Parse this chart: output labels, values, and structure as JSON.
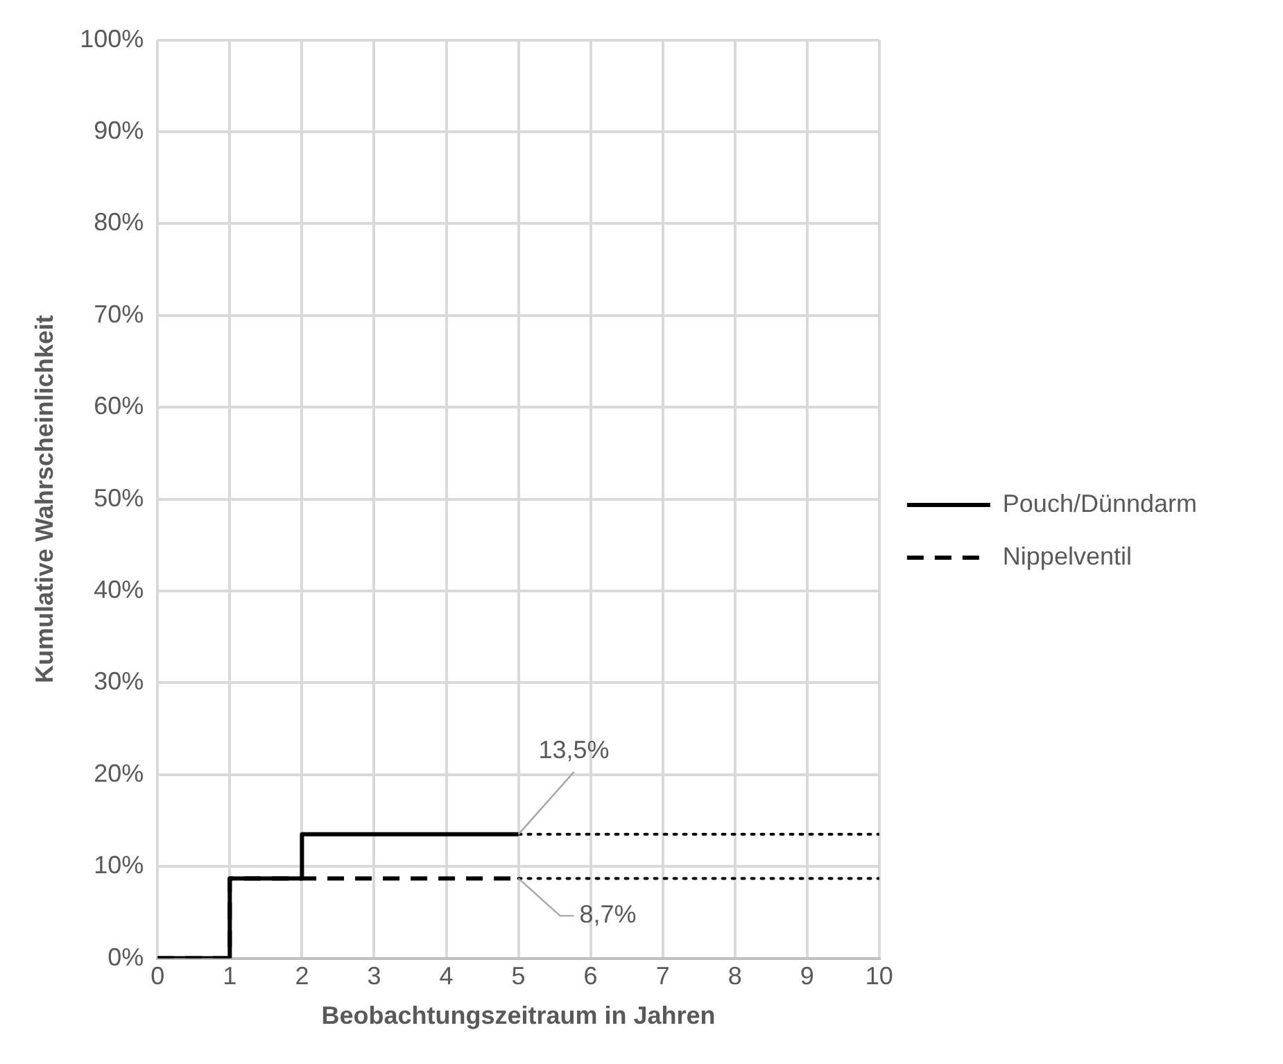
{
  "chart_data": {
    "type": "step",
    "xlabel": "Beobachtungszeitraum in Jahren",
    "ylabel": "Kumulative Wahrscheinlichkeit",
    "series": [
      {
        "name": "Pouch/Dünndarm",
        "color": "#000000",
        "line_style": "solid",
        "x": [
          0,
          1,
          2,
          5
        ],
        "values": [
          0,
          8.7,
          13.5,
          13.5
        ]
      },
      {
        "name": "Nippelventil",
        "color": "#000000",
        "line_style": "dashed",
        "x": [
          0,
          1,
          5
        ],
        "values": [
          0,
          8.7,
          8.7
        ]
      },
      {
        "color": "#000000",
        "line_style": "dotted",
        "x": [
          5,
          10
        ],
        "values": [
          13.5,
          13.5
        ]
      },
      {
        "color": "#000000",
        "line_style": "dotted",
        "x": [
          5,
          10
        ],
        "values": [
          8.7,
          8.7
        ]
      }
    ],
    "xlim": [
      0,
      10
    ],
    "xticks": [
      0,
      1,
      2,
      3,
      4,
      5,
      6,
      7,
      8,
      9,
      10
    ],
    "ylim": [
      0,
      100
    ],
    "yticks": [
      {
        "value": 0,
        "label": "0%"
      },
      {
        "value": 10,
        "label": "10%"
      },
      {
        "value": 20,
        "label": "20%"
      },
      {
        "value": 30,
        "label": "30%"
      },
      {
        "value": 40,
        "label": "40%"
      },
      {
        "value": 50,
        "label": "50%"
      },
      {
        "value": 60,
        "label": "60%"
      },
      {
        "value": 70,
        "label": "70%"
      },
      {
        "value": 80,
        "label": "80%"
      },
      {
        "value": 90,
        "label": "90%"
      },
      {
        "value": 100,
        "label": "100%"
      }
    ],
    "annotations": [
      {
        "text": "13,5%",
        "x": 5,
        "y": 13.5
      },
      {
        "text": "8,7%",
        "x": 5,
        "y": 8.7
      }
    ],
    "grid": true,
    "legend": "right"
  }
}
